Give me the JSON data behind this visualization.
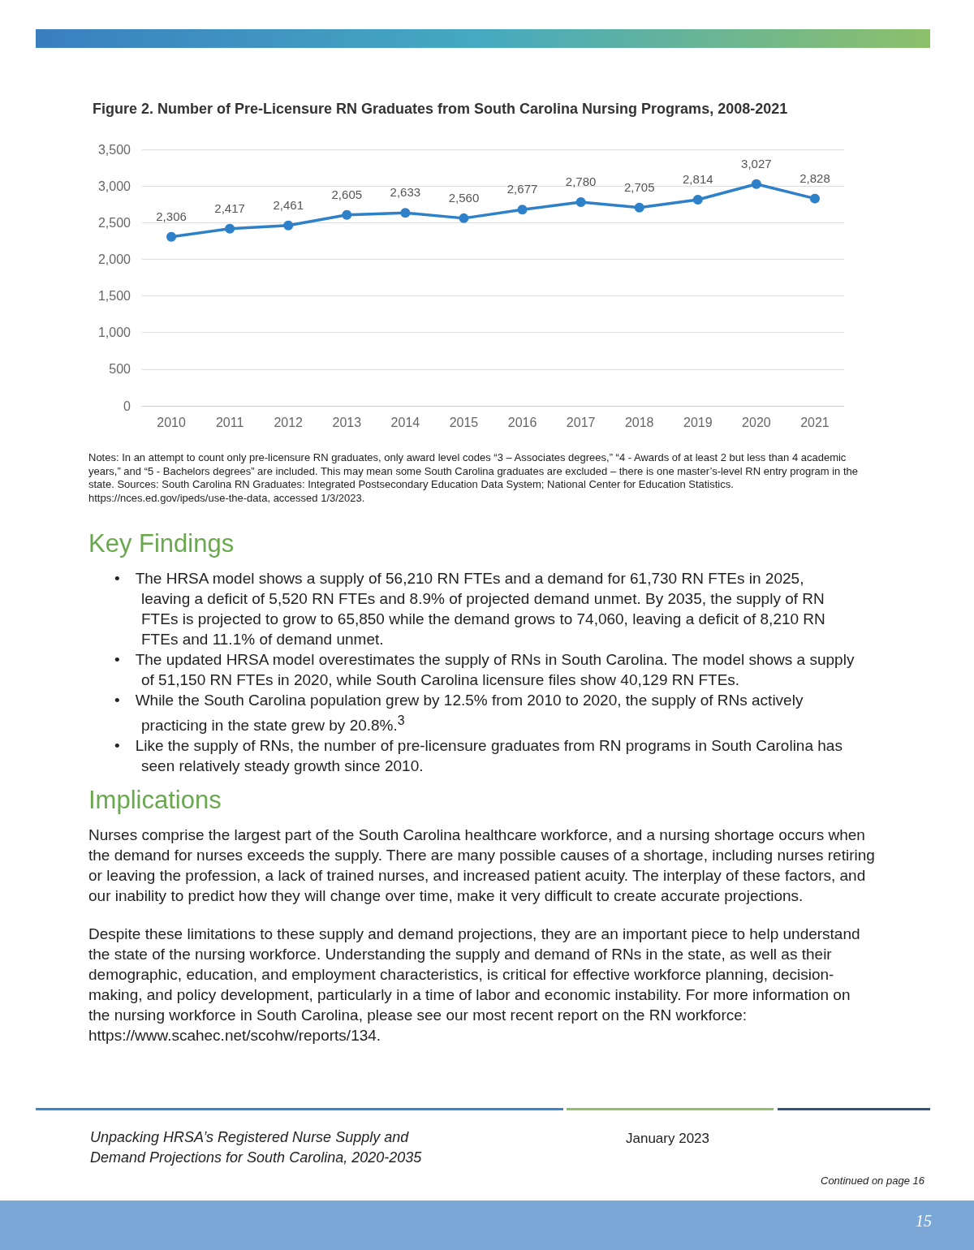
{
  "chart_data": {
    "type": "line",
    "title": "Figure 2. Number of Pre-Licensure RN Graduates from South Carolina Nursing Programs, 2008-2021",
    "categories": [
      "2010",
      "2011",
      "2012",
      "2013",
      "2014",
      "2015",
      "2016",
      "2017",
      "2018",
      "2019",
      "2020",
      "2021"
    ],
    "values": [
      2306,
      2417,
      2461,
      2605,
      2633,
      2560,
      2677,
      2780,
      2705,
      2814,
      3027,
      2828
    ],
    "color": "#2e80c8",
    "value_labels": [
      "2,306",
      "2,417",
      "2,461",
      "2,605",
      "2,633",
      "2,560",
      "2,677",
      "2,780",
      "2,705",
      "2,814",
      "3,027",
      "2,828"
    ],
    "ylim": [
      0,
      3500
    ],
    "yticks": [
      0,
      500,
      {
        "value": 1000,
        "label": "1,000"
      },
      {
        "value": 1500,
        "label": "1,500"
      },
      {
        "value": 2000,
        "label": "2,000"
      },
      {
        "value": 2500,
        "label": "2,500"
      },
      {
        "value": 3000,
        "label": "3,000"
      },
      {
        "value": 3500,
        "label": "3,500"
      }
    ],
    "grid": "y",
    "marker": "circle",
    "line_style": "solid",
    "annotations": [
      "Notes: In an attempt to count only pre-licensure RN graduates, only award level codes “3 – Associates degrees,” “4 - Awards of at least 2 but less than 4 academic years,” and “5 - Bachelors degrees” are included. This may mean some South Carolina graduates are excluded – there is one master’s-level RN entry program in the state. Sources: South Carolina RN Graduates: Integrated Postsecondary Education Data System; National Center for Education Statistics. https://nces.ed.gov/ipeds/use-the-data, accessed 1/3/2023.",
      "Key Findings",
      "• The HRSA model shows a supply of 56,210 RN FTEs and a demand for 61,730 RN FTEs in 2025, leaving a deficit of 5,520 RN FTEs and 8.9% of projected demand unmet. By 2035, the supply of RN FTEs is projected to grow to 65,850 while the demand grows to 74,060, leaving a deficit of 8,210 RN FTEs and 11.1% of demand unmet.",
      "• The updated HRSA model overestimates the supply of RNs in South Carolina. The model shows a supply of 51,150 RN FTEs in 2020, while South Carolina licensure files show 40,129 RN FTEs.",
      "• While the South Carolina population grew by 12.5% from 2010 to 2020, the supply of RNs actively practicing in the state grew by 20.8%.$^{3}$",
      "• Like the supply of RNs, the number of pre-licensure graduates from RN programs in South Carolina has seen relatively steady growth since 2010.",
      "Implications",
      "Nurses comprise the largest part of the South Carolina healthcare workforce, and a nursing shortage occurs when the demand for nurses exceeds the supply. There are many possible causes of a shortage, including nurses retiring or leaving the profession, a lack of trained nurses, and increased patient acuity. The interplay of these factors, and our inability to predict how they will change over time, make it very difficult to create accurate projections.",
      "Despite these limitations to these supply and demand projections, they are an important piece to help understand the state of the nursing workforce. Understanding the supply and demand of RNs in the state, as well as their demographic, education, and employment characteristics, is critical for effective workforce planning, decision-making, and policy development, particularly in a time of labor and economic instability. For more information on the nursing workforce in South Carolina, please see our most recent report on the RN workforce: https://www.scahec.net/scohw/reports/134.",
      "Unpacking HRSA’s Registered Nurse Supply and Demand Projections for South Carolina, 2020-2035",
      "January 2023",
      "Continued on page 16",
      "15"
    ]
  }
}
